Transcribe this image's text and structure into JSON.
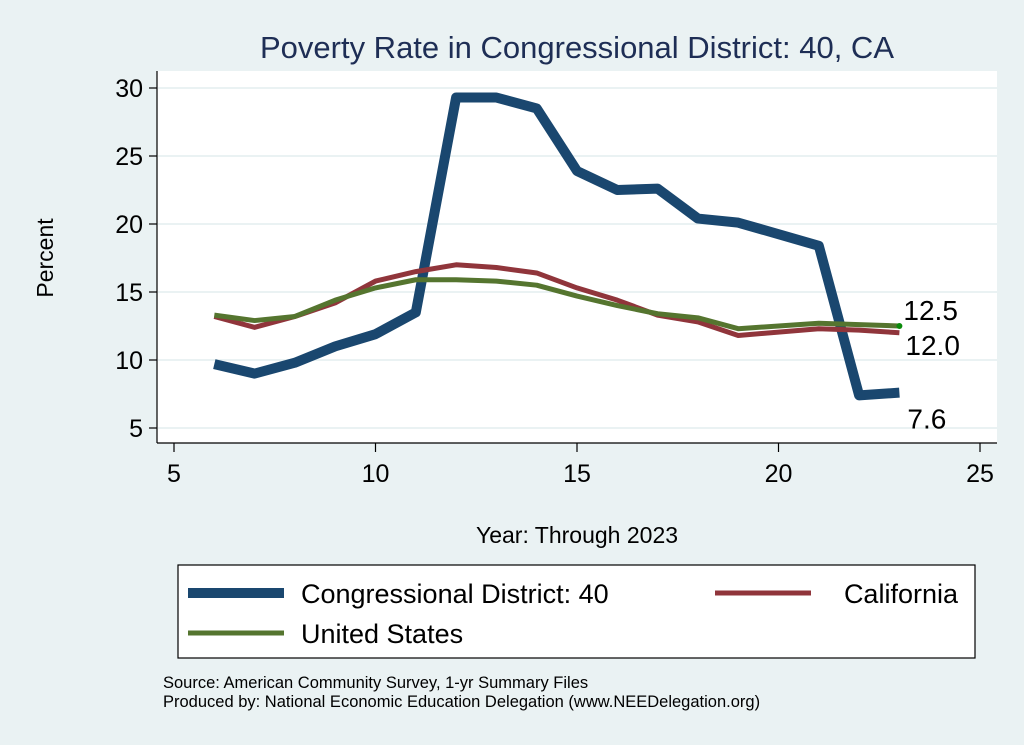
{
  "chart_data": {
    "type": "line",
    "title": "Poverty Rate in Congressional District:  40, CA",
    "xlabel": "Year: Through 2023",
    "ylabel": "Percent",
    "xlim": [
      5,
      25
    ],
    "ylim": [
      5,
      30
    ],
    "xticks": [
      5,
      10,
      15,
      20,
      25
    ],
    "yticks": [
      5,
      10,
      15,
      20,
      25,
      30
    ],
    "grid": "horizontal",
    "legend_position": "bottom",
    "series": [
      {
        "name": "Congressional District:  40",
        "color": "#1A476F",
        "x": [
          6,
          7,
          8,
          9,
          10,
          11,
          12,
          13,
          14,
          15,
          16,
          17,
          18,
          19,
          21,
          22,
          23
        ],
        "values": [
          9.7,
          9.0,
          9.8,
          11.0,
          11.9,
          13.5,
          29.3,
          29.3,
          28.5,
          23.9,
          22.5,
          22.6,
          20.4,
          20.1,
          18.4,
          7.4,
          7.6
        ],
        "end_label": "7.6"
      },
      {
        "name": "California",
        "color": "#90353B",
        "x": [
          6,
          7,
          8,
          9,
          10,
          11,
          12,
          13,
          14,
          15,
          16,
          17,
          18,
          19,
          21,
          22,
          23
        ],
        "values": [
          13.2,
          12.4,
          13.2,
          14.2,
          15.8,
          16.5,
          17.0,
          16.8,
          16.4,
          15.3,
          14.4,
          13.3,
          12.8,
          11.8,
          12.3,
          12.2,
          12.0
        ],
        "end_label": "12.0"
      },
      {
        "name": "United States",
        "color": "#55752F",
        "x": [
          6,
          7,
          8,
          9,
          10,
          11,
          12,
          13,
          14,
          15,
          16,
          17,
          18,
          19,
          21,
          22,
          23
        ],
        "values": [
          13.3,
          12.9,
          13.2,
          14.4,
          15.3,
          15.9,
          15.9,
          15.8,
          15.5,
          14.7,
          14.0,
          13.4,
          13.1,
          12.3,
          12.7,
          12.6,
          12.5
        ],
        "end_label": "12.5"
      }
    ],
    "notes": [
      "Source: American Community Survey, 1-yr Summary Files",
      "Produced by: National Economic Education Delegation (www.NEEDelegation.org)"
    ]
  }
}
